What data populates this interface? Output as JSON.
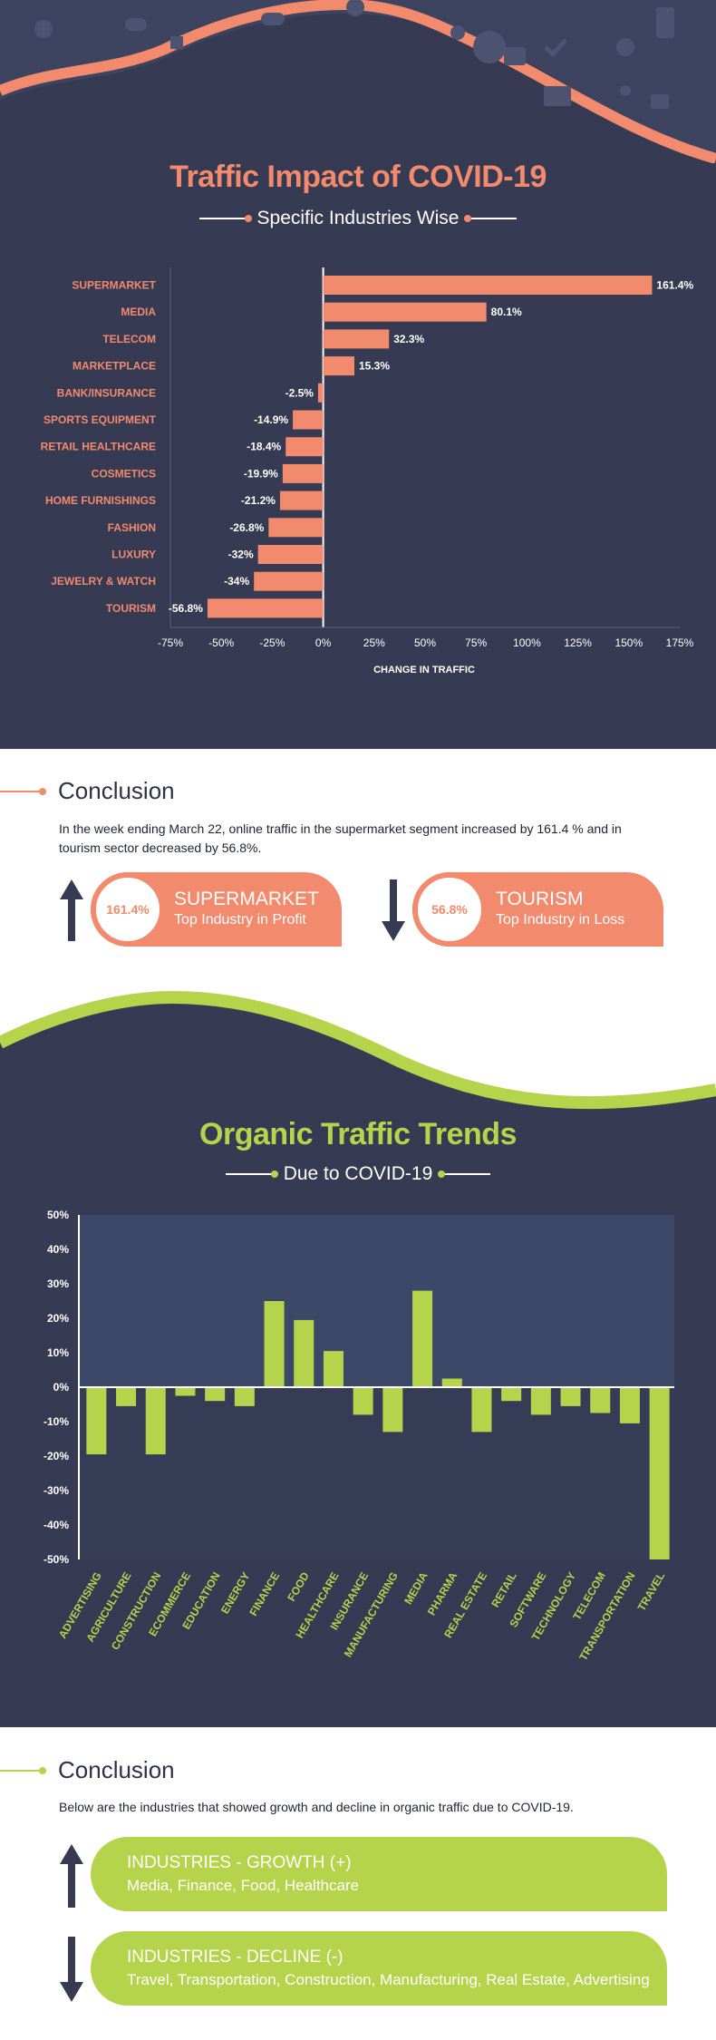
{
  "section1": {
    "title": "Traffic Impact of COVID-19",
    "subtitle": "Specific Industries Wise"
  },
  "chart1": {
    "type": "bar",
    "orientation": "horizontal",
    "categories": [
      "SUPERMARKET",
      "MEDIA",
      "TELECOM",
      "MARKETPLACE",
      "BANK/INSURANCE",
      "SPORTS EQUIPMENT",
      "RETAIL HEALTHCARE",
      "COSMETICS",
      "HOME FURNISHINGS",
      "FASHION",
      "LUXURY",
      "JEWELRY & WATCH",
      "TOURISM"
    ],
    "values": [
      161.4,
      80.1,
      32.3,
      15.3,
      -2.5,
      -14.9,
      -18.4,
      -19.9,
      -21.2,
      -26.8,
      -32,
      -34,
      -56.8
    ],
    "value_labels": [
      "161.4%",
      "80.1%",
      "32.3%",
      "15.3%",
      "-2.5%",
      "-14.9%",
      "-18.4%",
      "-19.9%",
      "-21.2%",
      "-26.8%",
      "-32%",
      "-34%",
      "-56.8%"
    ],
    "xlim": [
      -75,
      175
    ],
    "xticks": [
      -75,
      -50,
      -25,
      0,
      25,
      50,
      75,
      100,
      125,
      150,
      175
    ],
    "xtick_labels": [
      "-75%",
      "-50%",
      "-25%",
      "0%",
      "25%",
      "50%",
      "75%",
      "100%",
      "125%",
      "150%",
      "175%"
    ],
    "xlabel": "CHANGE IN TRAFFIC",
    "bar_color": "#f28a6e"
  },
  "conclusion1": {
    "heading": "Conclusion",
    "text": "In the week ending March 22, online traffic in the supermarket segment increased by 161.4 % and in tourism sector decreased by 56.8%.",
    "profit": {
      "value": "161.4%",
      "title": "SUPERMARKET",
      "subtitle": "Top Industry in Profit"
    },
    "loss": {
      "value": "56.8%",
      "title": "TOURISM",
      "subtitle": "Top Industry in Loss"
    }
  },
  "section2": {
    "title": "Organic Traffic Trends",
    "subtitle": "Due to COVID-19"
  },
  "chart2": {
    "type": "bar",
    "categories": [
      "ADVERTISING",
      "AGRICULTURE",
      "CONSTRUCTION",
      "ECOMMERCE",
      "EDUCATION",
      "ENERGY",
      "FINANCE",
      "FOOD",
      "HEALTHCARE",
      "INSURANCE",
      "MANUFACTURING",
      "MEDIA",
      "PHARMA",
      "REAL ESTATE",
      "RETAIL",
      "SOFTWARE",
      "TECHNOLOGY",
      "TELECOM",
      "TRANSPORTATION",
      "TRAVEL"
    ],
    "values": [
      -19.5,
      -5.5,
      -19.5,
      -2.5,
      -4,
      -5.5,
      25,
      19.5,
      10.5,
      -8,
      -13,
      28,
      2.5,
      -13,
      -4,
      -8,
      -5.5,
      -7.5,
      -10.5,
      -50
    ],
    "ylim": [
      -50,
      50
    ],
    "yticks": [
      -50,
      -40,
      -30,
      -20,
      -10,
      0,
      10,
      20,
      30,
      40,
      50
    ],
    "ytick_labels": [
      "-50%",
      "-40%",
      "-30%",
      "-20%",
      "-10%",
      "0%",
      "10%",
      "20%",
      "30%",
      "40%",
      "50%"
    ],
    "bar_color": "#b5d44b"
  },
  "conclusion2": {
    "heading": "Conclusion",
    "text": "Below are the industries that showed growth and decline in organic traffic due to COVID-19.",
    "growth": {
      "title": "INDUSTRIES - GROWTH (+)",
      "subtitle": "Media, Finance, Food, Healthcare"
    },
    "decline": {
      "title": "INDUSTRIES - DECLINE (-)",
      "subtitle": "Travel, Transportation, Construction, Manufacturing, Real Estate, Advertising"
    }
  }
}
